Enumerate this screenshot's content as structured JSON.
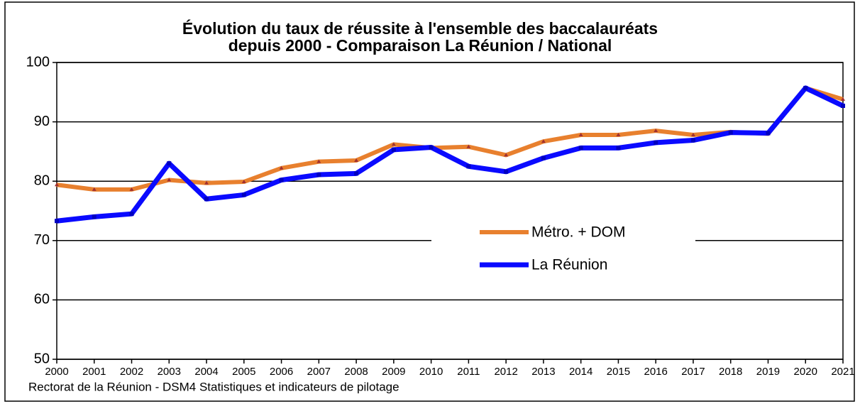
{
  "chart_data": {
    "type": "line",
    "title": [
      "Évolution  du taux de réussite à l'ensemble des baccalauréats",
      "depuis 2000 - Comparaison La Réunion / National"
    ],
    "categories": [
      "2000",
      "2001",
      "2002",
      "2003",
      "2004",
      "2005",
      "2006",
      "2007",
      "2008",
      "2009",
      "2010",
      "2011",
      "2012",
      "2013",
      "2014",
      "2015",
      "2016",
      "2017",
      "2018",
      "2019",
      "2020",
      "2021"
    ],
    "series": [
      {
        "name": "Métro. + DOM",
        "color": "#e8802e",
        "values": [
          79.4,
          78.6,
          78.6,
          80.2,
          79.7,
          79.9,
          82.2,
          83.3,
          83.5,
          86.2,
          85.6,
          85.8,
          84.4,
          86.7,
          87.8,
          87.8,
          88.5,
          87.8,
          88.3,
          88.0,
          95.7,
          93.8
        ]
      },
      {
        "name": "La Réunion",
        "color": "#0a0aff",
        "values": [
          73.3,
          74.0,
          74.5,
          83.0,
          77.0,
          77.7,
          80.2,
          81.1,
          81.3,
          85.3,
          85.7,
          82.5,
          81.6,
          83.9,
          85.6,
          85.6,
          86.5,
          86.9,
          88.2,
          88.1,
          95.7,
          92.7
        ]
      }
    ],
    "ylim": [
      50,
      100
    ],
    "yticks": [
      50,
      60,
      70,
      80,
      90,
      100
    ],
    "grid": true,
    "source": "Rectorat de la Réunion - DSM4 Statistiques et indicateurs de pilotage"
  }
}
